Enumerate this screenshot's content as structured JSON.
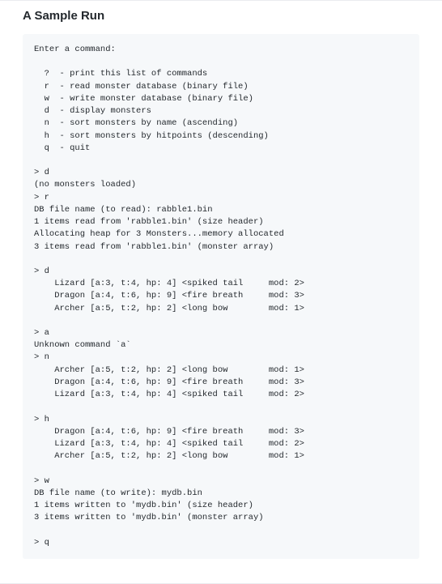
{
  "heading": "A Sample Run",
  "terminal_output": "Enter a command:\n\n  ?  - print this list of commands\n  r  - read monster database (binary file)\n  w  - write monster database (binary file)\n  d  - display monsters\n  n  - sort monsters by name (ascending)\n  h  - sort monsters by hitpoints (descending)\n  q  - quit\n\n> d\n(no monsters loaded)\n> r\nDB file name (to read): rabble1.bin\n1 items read from 'rabble1.bin' (size header)\nAllocating heap for 3 Monsters...memory allocated\n3 items read from 'rabble1.bin' (monster array)\n\n> d\n    Lizard [a:3, t:4, hp: 4] <spiked tail     mod: 2>\n    Dragon [a:4, t:6, hp: 9] <fire breath     mod: 3>\n    Archer [a:5, t:2, hp: 2] <long bow        mod: 1>\n\n> a\nUnknown command `a`\n> n\n    Archer [a:5, t:2, hp: 2] <long bow        mod: 1>\n    Dragon [a:4, t:6, hp: 9] <fire breath     mod: 3>\n    Lizard [a:3, t:4, hp: 4] <spiked tail     mod: 2>\n\n> h\n    Dragon [a:4, t:6, hp: 9] <fire breath     mod: 3>\n    Lizard [a:3, t:4, hp: 4] <spiked tail     mod: 2>\n    Archer [a:5, t:2, hp: 2] <long bow        mod: 1>\n\n> w\nDB file name (to write): mydb.bin\n1 items written to 'mydb.bin' (size header)\n3 items written to 'mydb.bin' (monster array)\n\n> q",
  "colors": {
    "heading_color": "#24292e",
    "code_background": "#f6f8fa",
    "code_text": "#24292e",
    "border_color": "#eaecef",
    "page_background": "#ffffff"
  },
  "typography": {
    "heading_fontsize": 15,
    "heading_fontweight": 600,
    "code_fontsize": 10.5,
    "code_fontfamily": "SFMono-Regular, Consolas, Liberation Mono, Menlo, Courier, monospace"
  }
}
